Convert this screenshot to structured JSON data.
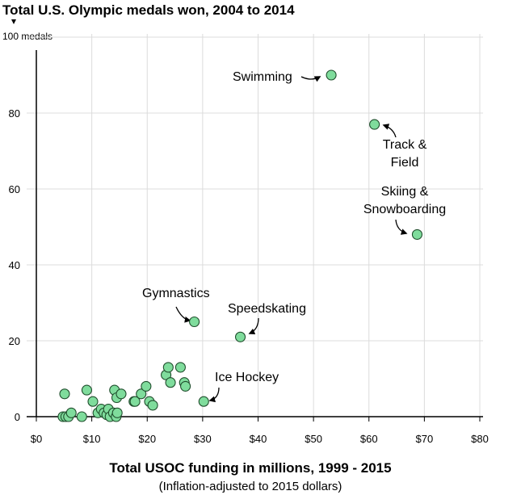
{
  "chart_data": {
    "type": "scatter",
    "title": "Total U.S. Olympic medals won, 2004 to 2014",
    "ylabel": "100 medals",
    "xlabel": "Total USOC funding in millions, 1999 - 2015",
    "xlabel_note": "(Inflation-adjusted to 2015 dollars)",
    "xlim": [
      0,
      80
    ],
    "ylim": [
      0,
      100
    ],
    "x_ticks": [
      0,
      10,
      20,
      30,
      40,
      50,
      60,
      70,
      80
    ],
    "x_tick_labels": [
      "$0",
      "$10",
      "$20",
      "$30",
      "$40",
      "$50",
      "$60",
      "$70",
      "$80"
    ],
    "y_ticks": [
      0,
      20,
      40,
      60,
      80
    ],
    "y_tick_labels": [
      "0",
      "20",
      "40",
      "60",
      "80"
    ],
    "grid": true,
    "point_color": "#7fdc9c",
    "points": [
      {
        "x": 53.2,
        "y": 90,
        "label": "Swimming"
      },
      {
        "x": 61,
        "y": 77,
        "label": "Track & Field"
      },
      {
        "x": 68.7,
        "y": 48,
        "label": "Skiing & Snowboarding"
      },
      {
        "x": 28.5,
        "y": 25,
        "label": "Gymnastics"
      },
      {
        "x": 36.8,
        "y": 21,
        "label": "Speedskating"
      },
      {
        "x": 30.2,
        "y": 4,
        "label": "Ice Hockey"
      },
      {
        "x": 5.1,
        "y": 6
      },
      {
        "x": 4.8,
        "y": 0
      },
      {
        "x": 5.3,
        "y": 0
      },
      {
        "x": 5.8,
        "y": 0
      },
      {
        "x": 6.3,
        "y": 1
      },
      {
        "x": 8.2,
        "y": 0
      },
      {
        "x": 9.1,
        "y": 7
      },
      {
        "x": 10.2,
        "y": 4
      },
      {
        "x": 11.1,
        "y": 1
      },
      {
        "x": 11.7,
        "y": 2
      },
      {
        "x": 12.2,
        "y": 1
      },
      {
        "x": 12.7,
        "y": 0.5
      },
      {
        "x": 13.0,
        "y": 2
      },
      {
        "x": 13.3,
        "y": 0
      },
      {
        "x": 13.9,
        "y": 1
      },
      {
        "x": 14.1,
        "y": 7
      },
      {
        "x": 14.4,
        "y": 0
      },
      {
        "x": 14.5,
        "y": 5
      },
      {
        "x": 14.6,
        "y": 1
      },
      {
        "x": 15.3,
        "y": 6
      },
      {
        "x": 17.6,
        "y": 4
      },
      {
        "x": 17.8,
        "y": 4
      },
      {
        "x": 18.9,
        "y": 6
      },
      {
        "x": 19.8,
        "y": 8
      },
      {
        "x": 20.4,
        "y": 4
      },
      {
        "x": 21.0,
        "y": 3
      },
      {
        "x": 23.4,
        "y": 11
      },
      {
        "x": 23.8,
        "y": 13
      },
      {
        "x": 24.2,
        "y": 9
      },
      {
        "x": 26.0,
        "y": 13
      },
      {
        "x": 26.7,
        "y": 9
      },
      {
        "x": 26.9,
        "y": 8
      }
    ],
    "annotations": [
      {
        "name": "swimming",
        "lines": [
          "Swimming"
        ]
      },
      {
        "name": "track-field",
        "lines": [
          "Track &",
          "Field"
        ]
      },
      {
        "name": "skiing-snowboarding",
        "lines": [
          "Skiing &",
          "Snowboarding"
        ]
      },
      {
        "name": "gymnastics",
        "lines": [
          "Gymnastics"
        ]
      },
      {
        "name": "speedskating",
        "lines": [
          "Speedskating"
        ]
      },
      {
        "name": "ice-hockey",
        "lines": [
          "Ice Hockey"
        ]
      }
    ]
  }
}
